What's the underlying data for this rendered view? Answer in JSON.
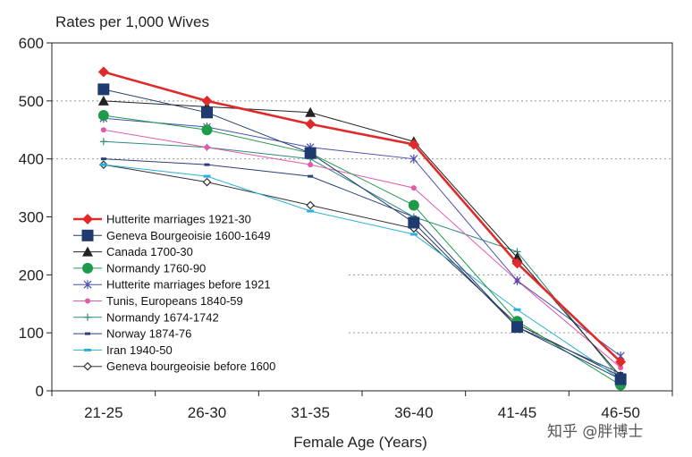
{
  "chart_data": {
    "type": "line",
    "title": "",
    "ylabel": "Rates per 1,000 Wives",
    "xlabel": "Female Age (Years)",
    "categories": [
      "21-25",
      "26-30",
      "31-35",
      "36-40",
      "41-45",
      "46-50"
    ],
    "ylim": [
      0,
      600
    ],
    "yticks": [
      0,
      100,
      200,
      300,
      400,
      500,
      600
    ],
    "grid": "horizontal dotted lines at 100, 200, 400 and 500",
    "legend_position": "left-middle",
    "series": [
      {
        "name": "Hutterite marriages 1921-30",
        "color": "#e02a2a",
        "marker": "diamond",
        "values": [
          550,
          500,
          460,
          425,
          220,
          50
        ]
      },
      {
        "name": "Geneva Bourgeoisie 1600-1649",
        "color": "#1f3a6e",
        "marker": "square",
        "values": [
          520,
          480,
          410,
          290,
          110,
          20
        ]
      },
      {
        "name": "Canada 1700-30",
        "color": "#222222",
        "marker": "triangle",
        "values": [
          500,
          490,
          480,
          430,
          230,
          25
        ]
      },
      {
        "name": "Normandy 1760-90",
        "color": "#1e9a4b",
        "marker": "circle",
        "values": [
          475,
          450,
          410,
          320,
          120,
          10
        ]
      },
      {
        "name": "Hutterite marriages before 1921",
        "color": "#4a4fb0",
        "marker": "star",
        "values": [
          470,
          455,
          420,
          400,
          190,
          60
        ]
      },
      {
        "name": "Tunis, Europeans 1840-59",
        "color": "#e05aaa",
        "marker": "dot",
        "values": [
          450,
          420,
          390,
          350,
          190,
          40
        ]
      },
      {
        "name": "Normandy 1674-1742",
        "color": "#2e8a7a",
        "marker": "plus",
        "values": [
          430,
          420,
          400,
          300,
          240,
          20
        ]
      },
      {
        "name": "Norway 1874-76",
        "color": "#2a3f7a",
        "marker": "dash",
        "values": [
          400,
          390,
          370,
          300,
          110,
          30
        ]
      },
      {
        "name": "Iran 1940-50",
        "color": "#29b0d8",
        "marker": "bar",
        "values": [
          390,
          370,
          310,
          270,
          140,
          20
        ]
      },
      {
        "name": "Geneva bourgeoisie before 1600",
        "color": "#333333",
        "marker": "open-diamond",
        "values": [
          390,
          360,
          320,
          280,
          115,
          25
        ]
      }
    ]
  },
  "watermark": "知乎 @胖博士"
}
